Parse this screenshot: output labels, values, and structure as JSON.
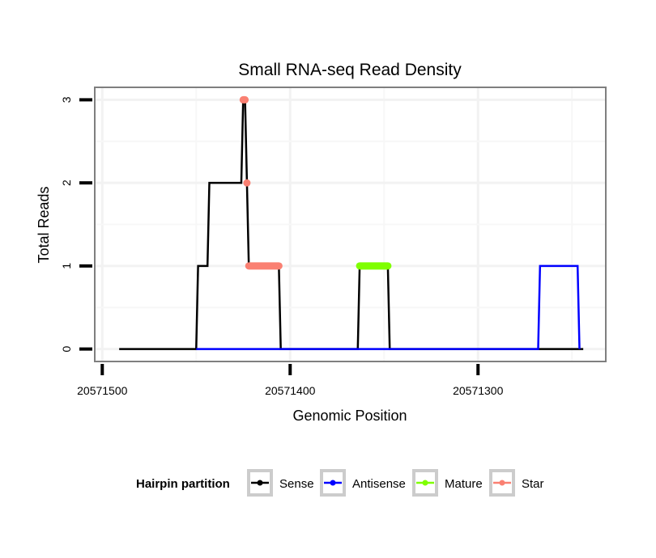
{
  "chart_data": {
    "type": "line",
    "title": "Small RNA-seq Read Density",
    "xlabel": "Genomic Position",
    "ylabel": "Total Reads",
    "xlim": [
      20571504,
      20571232
    ],
    "x_reversed": true,
    "ylim": [
      -0.15,
      3.15
    ],
    "x_ticks": [
      20571500,
      20571400,
      20571300
    ],
    "y_ticks": [
      0,
      1,
      2,
      3
    ],
    "grid": true,
    "legend": {
      "title": "Hairpin partition",
      "placement": "bottom",
      "entries": [
        "Sense",
        "Antisense",
        "Mature",
        "Star"
      ]
    },
    "colors": {
      "Sense": "#000000",
      "Antisense": "#0000ff",
      "Mature": "#7fff00",
      "Star": "#fa8072"
    },
    "series": [
      {
        "name": "Sense",
        "kind": "line",
        "x": [
          20571491,
          20571450,
          20571449,
          20571444,
          20571443,
          20571426,
          20571425,
          20571424,
          20571423,
          20571422,
          20571406,
          20571405,
          20571364,
          20571363,
          20571348,
          20571347,
          20571244
        ],
        "y": [
          0,
          0,
          1,
          1,
          2,
          2,
          3,
          3,
          2,
          1,
          1,
          0,
          0,
          1,
          1,
          0,
          0
        ]
      },
      {
        "name": "Antisense",
        "kind": "line",
        "x": [
          20571450,
          20571268,
          20571267,
          20571247,
          20571246
        ],
        "y": [
          0,
          0,
          1,
          1,
          0
        ]
      },
      {
        "name": "Mature",
        "kind": "points",
        "x": [
          20571363,
          20571348
        ],
        "y": [
          1,
          1
        ]
      },
      {
        "name": "Star",
        "kind": "points",
        "segments": [
          {
            "x": [
              20571425,
              20571424
            ],
            "y": [
              3,
              3
            ]
          },
          {
            "x": [
              20571423,
              20571423
            ],
            "y": [
              2,
              2
            ]
          },
          {
            "x": [
              20571422,
              20571406
            ],
            "y": [
              1,
              1
            ]
          }
        ]
      }
    ]
  }
}
